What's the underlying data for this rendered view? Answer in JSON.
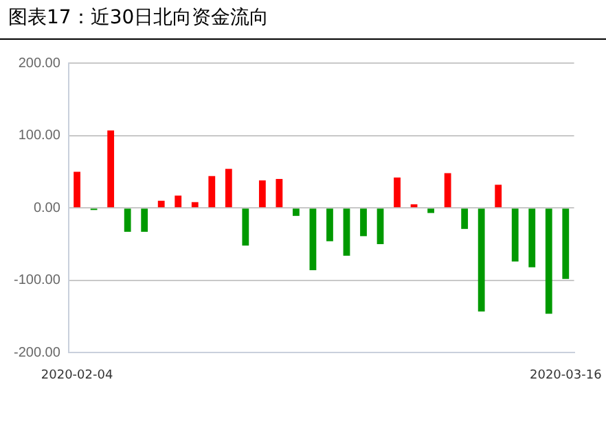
{
  "chart_data": {
    "type": "bar",
    "title": "图表17：近30日北向资金流向",
    "categories": [
      "2020-02-04",
      null,
      null,
      null,
      null,
      null,
      null,
      null,
      null,
      null,
      null,
      null,
      null,
      null,
      null,
      null,
      null,
      null,
      null,
      null,
      null,
      null,
      null,
      null,
      null,
      null,
      null,
      null,
      null,
      "2020-03-16"
    ],
    "values": [
      50,
      -3,
      107,
      -33,
      -33,
      10,
      17,
      8,
      44,
      54,
      -52,
      38,
      40,
      -11,
      -86,
      -46,
      -66,
      -39,
      -50,
      42,
      5,
      -7,
      48,
      -29,
      -143,
      32,
      -74,
      -82,
      -146,
      -98
    ],
    "colors": [
      "#ff0000",
      "#009900",
      "#ff0000",
      "#009900",
      "#009900",
      "#ff0000",
      "#ff0000",
      "#ff0000",
      "#ff0000",
      "#ff0000",
      "#009900",
      "#ff0000",
      "#ff0000",
      "#009900",
      "#009900",
      "#009900",
      "#009900",
      "#009900",
      "#009900",
      "#ff0000",
      "#ff0000",
      "#009900",
      "#ff0000",
      "#009900",
      "#009900",
      "#ff0000",
      "#009900",
      "#009900",
      "#009900",
      "#009900"
    ],
    "ylim": [
      -200,
      200
    ],
    "yticks": [
      {
        "value": -200,
        "label": "-200.00"
      },
      {
        "value": -100,
        "label": "-100.00"
      },
      {
        "value": 0,
        "label": "0.00"
      },
      {
        "value": 100,
        "label": "100.00"
      },
      {
        "value": 200,
        "label": "200.00"
      }
    ],
    "grid": "y"
  }
}
